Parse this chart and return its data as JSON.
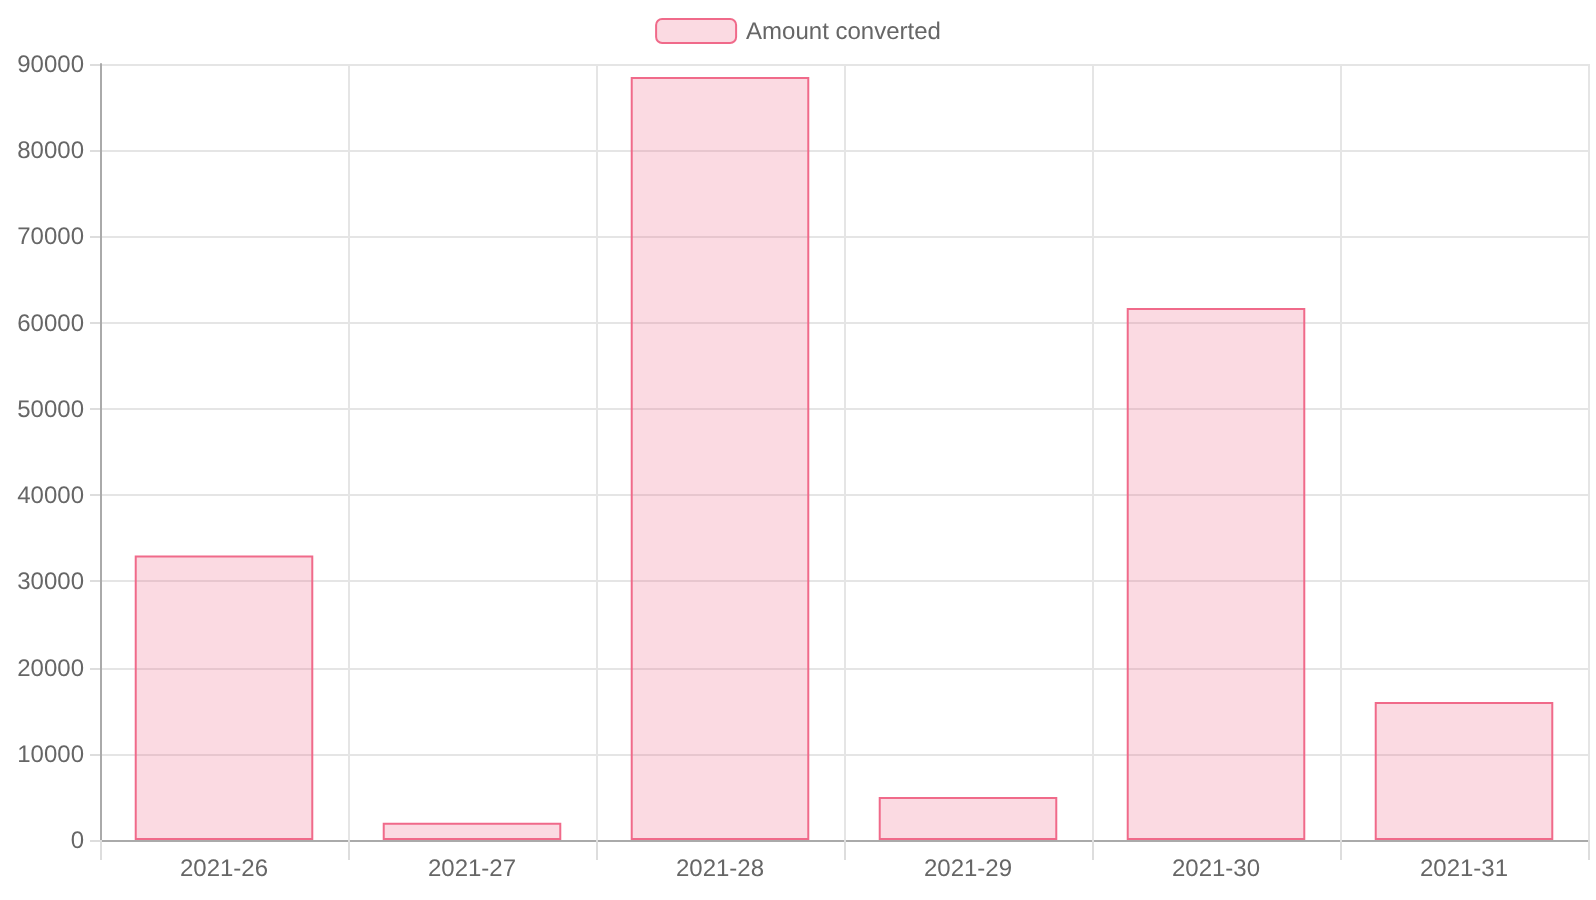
{
  "chart_data": {
    "type": "bar",
    "categories": [
      "2021-26",
      "2021-27",
      "2021-28",
      "2021-29",
      "2021-30",
      "2021-31"
    ],
    "series": [
      {
        "name": "Amount converted",
        "color": "#f06a8a",
        "values": [
          33000,
          2000,
          88500,
          5000,
          61700,
          16000
        ]
      }
    ],
    "ylim": [
      0,
      90000
    ],
    "yticks": [
      0,
      10000,
      20000,
      30000,
      40000,
      50000,
      60000,
      70000,
      80000,
      90000
    ],
    "grid": true,
    "legend": "top"
  }
}
